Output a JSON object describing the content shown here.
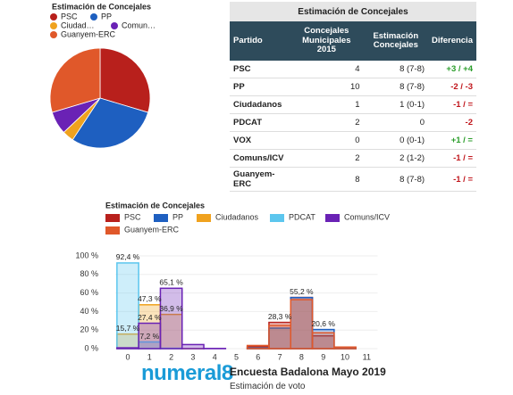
{
  "chart_data": [
    {
      "type": "pie",
      "title": "Estimación de Concejales",
      "categories": [
        "PSC",
        "PP",
        "Ciudad…",
        "Comun…",
        "Guanyem-ERC"
      ],
      "values": [
        8,
        8,
        1,
        2,
        8
      ],
      "colors": [
        "#b8201c",
        "#1e5fc0",
        "#f0a21e",
        "#6a22b5",
        "#e0582a"
      ]
    },
    {
      "type": "bar",
      "title": "Estimación de Concejales",
      "categories": [
        0,
        1,
        2,
        3,
        4,
        5,
        6,
        7,
        8,
        9,
        10,
        11
      ],
      "series": [
        {
          "name": "PSC",
          "color": "#b8201c",
          "values": [
            0,
            0,
            0,
            0,
            0,
            0,
            2.2,
            28.3,
            55.2,
            13.8,
            0.5,
            0
          ],
          "value_labels": [
            null,
            null,
            null,
            null,
            null,
            null,
            null,
            "28,3 %",
            "55,2 %",
            null,
            null,
            null
          ]
        },
        {
          "name": "PP",
          "color": "#1e5fc0",
          "values": [
            0,
            0,
            0,
            0,
            0,
            0,
            0.9,
            22.1,
            55.1,
            20.6,
            1.3,
            0
          ],
          "value_labels": [
            null,
            null,
            null,
            null,
            null,
            null,
            null,
            null,
            null,
            "20,6 %",
            null,
            null
          ]
        },
        {
          "name": "Ciudadanos",
          "color": "#f0a21e",
          "values": [
            15.7,
            47.3,
            36.9,
            0.1,
            0,
            0,
            0,
            0,
            0,
            0,
            0,
            0
          ],
          "value_labels": [
            "15,7 %",
            "47,3 %",
            "36,9 %",
            null,
            null,
            null,
            null,
            null,
            null,
            null,
            null,
            null
          ]
        },
        {
          "name": "PDCAT",
          "color": "#5cc6ee",
          "values": [
            92.4,
            7.2,
            0.4,
            0,
            0,
            0,
            0,
            0,
            0,
            0,
            0,
            0
          ],
          "value_labels": [
            "92,4 %",
            "7,2 %",
            null,
            null,
            null,
            null,
            null,
            null,
            null,
            null,
            null,
            null
          ]
        },
        {
          "name": "Comuns/ICV",
          "color": "#6a22b5",
          "values": [
            0.9,
            27.4,
            65.1,
            4.4,
            0.2,
            0,
            0,
            0,
            0,
            0,
            0,
            0
          ],
          "value_labels": [
            null,
            "27,4 %",
            "65,1 %",
            null,
            null,
            null,
            null,
            null,
            null,
            null,
            null,
            null
          ]
        },
        {
          "name": "Guanyem-ERC",
          "color": "#e0582a",
          "values": [
            0,
            0,
            0,
            0,
            0,
            0,
            3.4,
            25.0,
            52.8,
            17.1,
            1.7,
            0
          ],
          "value_labels": [
            null,
            null,
            null,
            null,
            null,
            null,
            null,
            null,
            null,
            null,
            null,
            null
          ]
        }
      ],
      "ylim": [
        0,
        100
      ],
      "yticks": [
        {
          "value": 0,
          "label": "0 %"
        },
        {
          "value": 20,
          "label": "20 %"
        },
        {
          "value": 40,
          "label": "40 %"
        },
        {
          "value": 60,
          "label": "60 %"
        },
        {
          "value": 80,
          "label": "80 %"
        },
        {
          "value": 100,
          "label": "100 %"
        }
      ],
      "grid": true
    }
  ],
  "table": {
    "title": "Estimación de Concejales",
    "columns": [
      "Partido",
      "Concejales Municipales 2015",
      "Estimación Concejales",
      "Diferencia"
    ],
    "rows": [
      [
        "PSC",
        4,
        "8 (7-8)",
        "+3 / +4"
      ],
      [
        "PP",
        10,
        "8 (7-8)",
        "-2 / -3"
      ],
      [
        "Ciudadanos",
        1,
        "1 (0-1)",
        "-1 / ="
      ],
      [
        "PDCAT",
        2,
        0,
        "-2"
      ],
      [
        "VOX",
        0,
        "0 (0-1)",
        "+1 / ="
      ],
      [
        "Comuns/ICV",
        2,
        "2 (1-2)",
        "-1 / ="
      ],
      [
        "Guanyem-ERC",
        8,
        "8 (7-8)",
        "-1 / ="
      ]
    ]
  },
  "footer": {
    "logo": "numeral8",
    "title": "Encuesta Badalona Mayo 2019",
    "subtitle": "Estimación de voto"
  }
}
